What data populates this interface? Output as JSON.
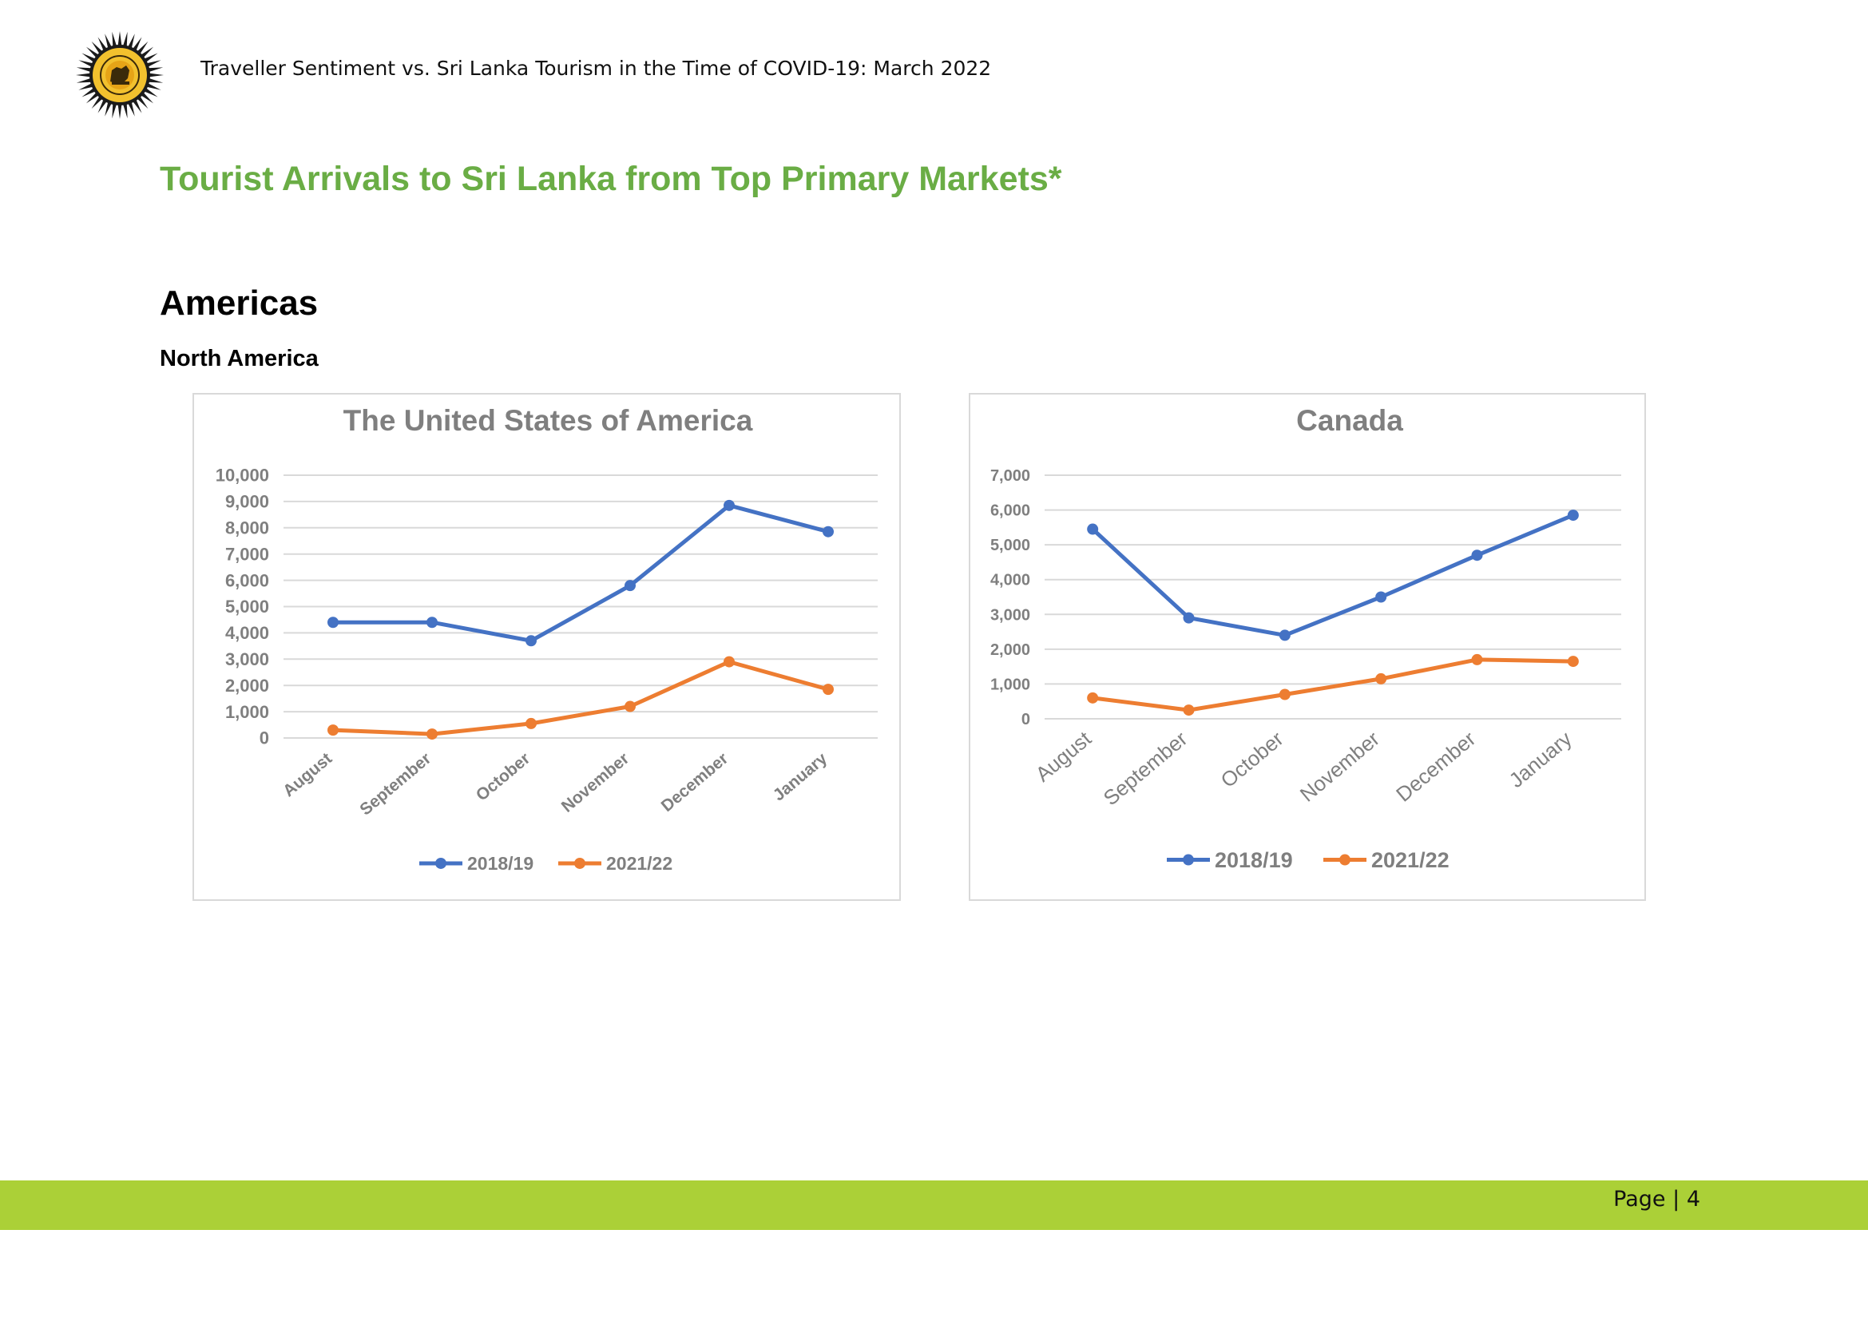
{
  "header": {
    "logo_icon": "sri-lanka-tourism-emblem-icon",
    "title": "Traveller Sentiment vs. Sri Lanka Tourism in the Time of COVID-19: March 2022"
  },
  "section_title": "Tourist Arrivals to Sri Lanka from Top Primary Markets*",
  "region_title": "Americas",
  "subregion_title": "North America",
  "colors": {
    "section_title": "#6aad45",
    "series_2018_19": "#4472c4",
    "series_2021_22": "#ed7d31",
    "footer_bar": "#abd037",
    "axis_text": "#7f7f7f"
  },
  "chart_data": [
    {
      "type": "line",
      "title": "The United States of America",
      "categories": [
        "August",
        "September",
        "October",
        "November",
        "December",
        "January"
      ],
      "series": [
        {
          "name": "2018/19",
          "values": [
            4400,
            4400,
            3700,
            5800,
            8850,
            7850
          ]
        },
        {
          "name": "2021/22",
          "values": [
            300,
            150,
            550,
            1200,
            2900,
            1850
          ]
        }
      ],
      "y_ticks": [
        "0",
        "1,000",
        "2,000",
        "3,000",
        "4,000",
        "5,000",
        "6,000",
        "7,000",
        "8,000",
        "9,000",
        "10,000"
      ],
      "ylim": [
        0,
        10000
      ],
      "grid": true,
      "legend_position": "bottom"
    },
    {
      "type": "line",
      "title": "Canada",
      "categories": [
        "August",
        "September",
        "October",
        "November",
        "December",
        "January"
      ],
      "series": [
        {
          "name": "2018/19",
          "values": [
            5450,
            2900,
            2400,
            3500,
            4700,
            5850
          ]
        },
        {
          "name": "2021/22",
          "values": [
            600,
            250,
            700,
            1150,
            1700,
            1650
          ]
        }
      ],
      "y_ticks": [
        "0",
        "1,000",
        "2,000",
        "3,000",
        "4,000",
        "5,000",
        "6,000",
        "7,000"
      ],
      "ylim": [
        0,
        7000
      ],
      "grid": true,
      "legend_position": "bottom"
    }
  ],
  "footer": {
    "page_label": "Page",
    "separator": "|",
    "page_number": "4"
  }
}
